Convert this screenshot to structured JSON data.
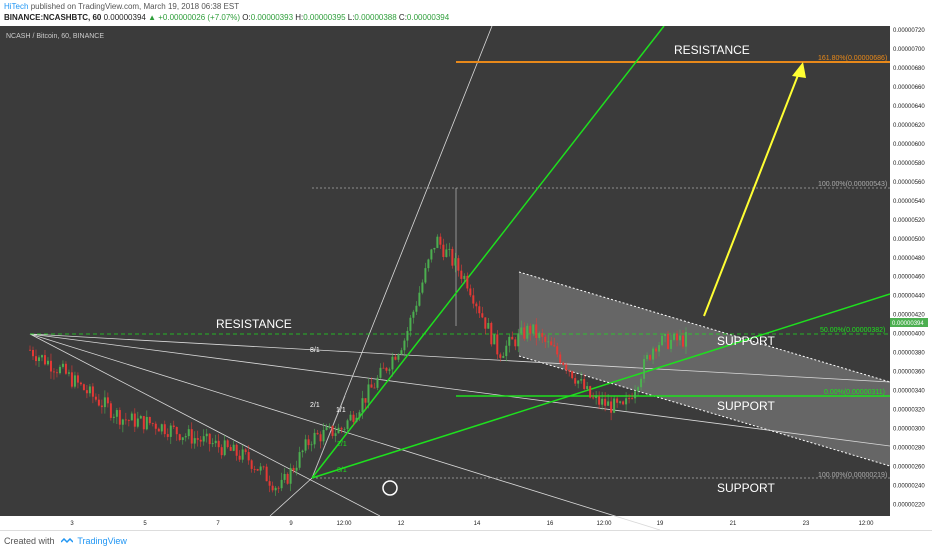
{
  "header": {
    "author": "HiTech",
    "published_text": "published on TradingView.com, March 19, 2018 06:38 EST",
    "symbol_line": "BINANCE:NCASHBTC, 60",
    "last": "0.00000394",
    "change": "▲ +0.00000026 (+7.07%)",
    "o_label": "O:",
    "o": "0.00000393",
    "h_label": "H:",
    "h": "0.00000395",
    "l_label": "L:",
    "l": "0.00000388",
    "c_label": "C:",
    "c": "0.00000394"
  },
  "chart_title": "NCASH / Bitcoin, 60, BINANCE",
  "footer": {
    "created_with": "Created with",
    "brand": "TradingView"
  },
  "colors": {
    "background": "#3b3b3b",
    "candle_up": "#4caf50",
    "candle_down": "#e53935",
    "fan_line": "#d9d9d9",
    "green_line": "#1ee01e",
    "orange_line": "#e8891a",
    "arrow": "#ffff33",
    "channel_fill": "#8a8a8a"
  },
  "chart_data": {
    "type": "line",
    "title": "NCASH / Bitcoin, 60, BINANCE",
    "ylim": [
      2.1e-06,
      7.2e-06
    ],
    "y_ticks": [
      "0.00000720",
      "0.00000700",
      "0.00000680",
      "0.00000660",
      "0.00000640",
      "0.00000620",
      "0.00000600",
      "0.00000580",
      "0.00000560",
      "0.00000540",
      "0.00000520",
      "0.00000500",
      "0.00000480",
      "0.00000460",
      "0.00000440",
      "0.00000420",
      "0.00000400",
      "0.00000380",
      "0.00000360",
      "0.00000340",
      "0.00000320",
      "0.00000300",
      "0.00000280",
      "0.00000260",
      "0.00000240",
      "0.00000220"
    ],
    "x_ticks": [
      "3",
      "5",
      "7",
      "9",
      "12:00",
      "12",
      "14",
      "16",
      "12:00",
      "19",
      "21",
      "23",
      "12:00"
    ],
    "last_price_label": "0.00000394",
    "series": [
      {
        "values": [
          [
            "3-01",
            3.83e-06
          ],
          [
            "3-02",
            3.61e-06
          ],
          [
            "3-03",
            3.34e-06
          ],
          [
            "3-04",
            3.1e-06
          ],
          [
            "3-05",
            3.05e-06
          ],
          [
            "3-06",
            2.93e-06
          ],
          [
            "3-07",
            2.82e-06
          ],
          [
            "3-08",
            2.68e-06
          ],
          [
            "3-09",
            2.36e-06
          ],
          [
            "3-10",
            2.9e-06
          ],
          [
            "3-11",
            3e-06
          ],
          [
            "3-12",
            3.45e-06
          ],
          [
            "3-13",
            3.95e-06
          ],
          [
            "3-14",
            5e-06
          ],
          [
            "3-14b",
            4.55e-06
          ],
          [
            "3-15",
            3.8e-06
          ],
          [
            "3-16",
            4.05e-06
          ],
          [
            "3-17",
            3.75e-06
          ],
          [
            "3-18",
            3.3e-06
          ],
          [
            "3-19",
            3.2e-06
          ],
          [
            "3-19b",
            3.9e-06
          ],
          [
            "3-20",
            3.94e-06
          ]
        ]
      }
    ],
    "annotations": {
      "resistance_top": "RESISTANCE",
      "resistance_left": "RESISTANCE",
      "support_1": "SUPPORT",
      "support_2": "SUPPORT",
      "support_3": "SUPPORT",
      "fib_1618": "161.80%(0.00000686)",
      "fib_100_top": "100.00%(0.00000543)",
      "fib_50": "50.00%(0.00000382)",
      "fib_0": "0.00%(0.00000311)",
      "fib_100_bottom": "100.00%(0.00000219)",
      "fan_8_1": "8/1",
      "fan_2_1": "2/1",
      "fan_1_1": "1/1",
      "fan_1_2": "2/1",
      "fan_1_8": "8/1"
    }
  }
}
